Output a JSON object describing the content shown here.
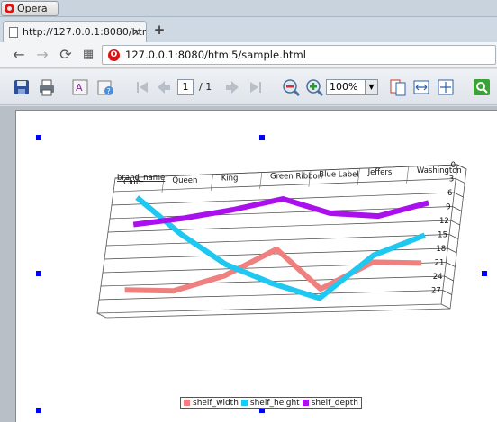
{
  "browser": {
    "app_name": "Opera",
    "tab_title": "http://127.0.0.1:8080/htm",
    "tab_close": "×",
    "new_tab": "+",
    "address": "127.0.0.1:8080/html5/sample.html",
    "back_glyph": "←",
    "forward_glyph": "→",
    "reload_glyph": "⟳",
    "speed_dial_glyph": "▦"
  },
  "viewer_toolbar": {
    "page_current": "1",
    "page_separator": "/",
    "page_total": "1",
    "zoom": "100%",
    "icons": [
      "save-icon",
      "print-icon",
      "text-icon",
      "properties-icon",
      "first-page-icon",
      "previous-page-icon",
      "next-page-icon",
      "last-page-icon",
      "zoom-out-icon",
      "zoom-in-icon",
      "single-page-icon",
      "fit-width-icon",
      "fit-page-icon",
      "search-icon"
    ]
  },
  "chart_data": {
    "type": "line",
    "title": "",
    "xlabel": "brand_name",
    "categories": [
      "Club",
      "Queen",
      "King",
      "Green Ribbon",
      "Blue Label",
      "Jeffers",
      "Washington"
    ],
    "y_ticks": [
      "0",
      "3",
      "6",
      "9",
      "12",
      "15",
      "18",
      "21",
      "24",
      "27"
    ],
    "ylim": [
      0,
      30
    ],
    "y_axis_inverted": true,
    "series": [
      {
        "name": "shelf_width",
        "color": "#f08080",
        "values": [
          25,
          25.5,
          22.5,
          17,
          26,
          20.5,
          21
        ]
      },
      {
        "name": "shelf_height",
        "color": "#1ec8f0",
        "values": [
          4.5,
          13,
          20,
          24.5,
          28,
          19,
          15
        ]
      },
      {
        "name": "shelf_depth",
        "color": "#aa10ee",
        "values": [
          10.5,
          9.5,
          8,
          6,
          9.5,
          10.5,
          8
        ]
      }
    ],
    "grid": true,
    "legend_position": "bottom"
  }
}
